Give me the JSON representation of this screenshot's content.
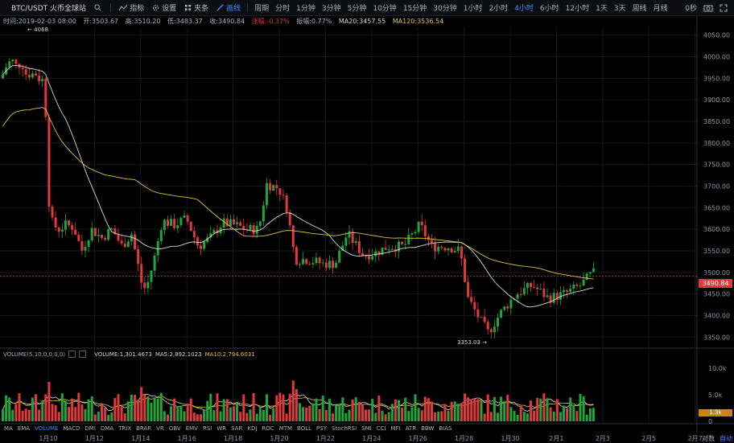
{
  "toolbar": {
    "symbol": "BTC/USDT 火币全球站",
    "indicator_label": "指标",
    "settings_label": "设置",
    "replay_label": "夹条",
    "draw_label": "画线",
    "period_label": "周期",
    "intervals": [
      "分时",
      "1分钟",
      "3分钟",
      "5分钟",
      "10分钟",
      "15分钟",
      "30分钟",
      "1小时",
      "2小时",
      "4小时",
      "6小时",
      "12小时",
      "1天",
      "3天",
      "周线",
      "月线"
    ],
    "selected_interval": "4小时",
    "countdown": "0秒"
  },
  "info": {
    "time": "时间:2019-02-03 08:00",
    "open": "开:3503.67",
    "high": "高:3510.20",
    "low": "低:3483.37",
    "close": "收:3490.84",
    "change": "涨幅:-0.37%",
    "amplitude": "振幅:0.77%",
    "ma20": "MA20:3457.55",
    "ma120": "MA120:3536.54"
  },
  "price_axis": [
    "4050.00",
    "4000.00",
    "3950.00",
    "3900.00",
    "3850.00",
    "3800.00",
    "3750.00",
    "3700.00",
    "3650.00",
    "3600.00",
    "3550.00",
    "3500.00",
    "3450.00",
    "3400.00",
    "3350.00"
  ],
  "current_price": "3490.84",
  "high_marker": "← 4068",
  "low_marker": "3353.03 →",
  "volume_info": {
    "params": "VOLUME(5,10,0,0,0,0)",
    "volume": "VOLUME:1,301.4673",
    "ma5": "MA5:2,892.1023",
    "ma10": "MA10:2,794.6031"
  },
  "volume_axis": [
    "10.0k",
    "5.0k",
    "0"
  ],
  "current_volume": "1.3k",
  "indicators": [
    "MA",
    "EMA",
    "VOLUME",
    "MACD",
    "DMI",
    "DMA",
    "TRIX",
    "BRAR",
    "VR",
    "OBV",
    "EMV",
    "RSI",
    "WR",
    "SAR",
    "KDJ",
    "ROC",
    "MTM",
    "BOLL",
    "PSY",
    "StochRSI",
    "SMI",
    "CCI",
    "MFI",
    "ATR",
    "BBW",
    "BIAS"
  ],
  "active_indicator": "VOLUME",
  "date_axis": [
    "1月10",
    "1月12",
    "1月14",
    "1月16",
    "1月18",
    "1月20",
    "1月22",
    "1月24",
    "1月26",
    "1月28",
    "1月30",
    "2月1",
    "2月3",
    "2月5",
    "2月7"
  ],
  "bottom_right": {
    "log": "对数",
    "auto": "自动"
  },
  "colors": {
    "up": "#22a33b",
    "down": "#e0393b",
    "ma_fast": "#d8d8d8",
    "ma_slow": "#e2c43b",
    "accent": "#3f8cff"
  }
}
